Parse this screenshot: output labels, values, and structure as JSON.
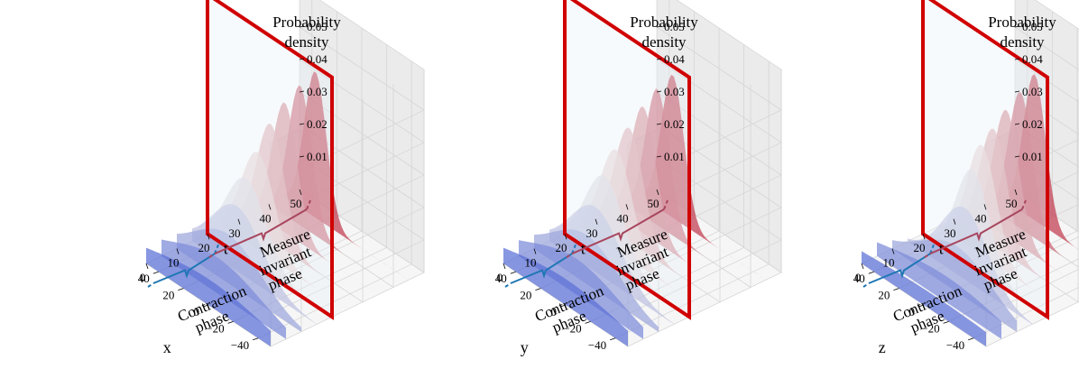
{
  "chart_data": [
    {
      "type": "area",
      "xlabel": "x",
      "ylabel": "t",
      "zlabel": "Probability density",
      "xlim": [
        -50,
        50
      ],
      "ylim": [
        0,
        50
      ],
      "zlim": [
        0,
        0.05
      ],
      "x_ticks": [
        "−40",
        "−20",
        "0",
        "20",
        "40"
      ],
      "t_ticks": [
        "0",
        "10",
        "20",
        "30",
        "40",
        "50"
      ],
      "z_ticks": [
        "0.01",
        "0.02",
        "0.03",
        "0.04",
        "0.05"
      ],
      "grid": true,
      "series": [
        {
          "t": 0,
          "mean": 0,
          "peak": 0.008
        },
        {
          "t": 5,
          "mean": 5,
          "peak": 0.011
        },
        {
          "t": 10,
          "mean": 9,
          "peak": 0.015
        },
        {
          "t": 15,
          "mean": 14,
          "peak": 0.02
        },
        {
          "t": 20,
          "mean": 19,
          "peak": 0.025
        },
        {
          "t": 25,
          "mean": 22,
          "peak": 0.03
        },
        {
          "t": 30,
          "mean": 24,
          "peak": 0.036
        },
        {
          "t": 35,
          "mean": 25,
          "peak": 0.04
        },
        {
          "t": 40,
          "mean": 25,
          "peak": 0.043
        },
        {
          "t": 45,
          "mean": 25,
          "peak": 0.045
        }
      ],
      "marker_plane_t": 20,
      "phases": [
        {
          "label_lines": [
            "Contraction",
            "phase"
          ],
          "t_range": [
            0,
            20
          ],
          "color": "#1f77b4"
        },
        {
          "label_lines": [
            "Measure",
            "invariant",
            "phase"
          ],
          "t_range": [
            20,
            50
          ],
          "color": "#a8465e"
        }
      ]
    },
    {
      "type": "area",
      "xlabel": "y",
      "ylabel": "t",
      "zlabel": "Probability density",
      "xlim": [
        -50,
        50
      ],
      "ylim": [
        0,
        50
      ],
      "zlim": [
        0,
        0.05
      ],
      "x_ticks": [
        "−40",
        "−20",
        "0",
        "20",
        "40"
      ],
      "t_ticks": [
        "0",
        "10",
        "20",
        "30",
        "40",
        "50"
      ],
      "z_ticks": [
        "0.01",
        "0.02",
        "0.03",
        "0.04",
        "0.05"
      ],
      "grid": true,
      "series": [
        {
          "t": 0,
          "mean": 0,
          "peak": 0.008
        },
        {
          "t": 5,
          "mean": 4,
          "peak": 0.011
        },
        {
          "t": 10,
          "mean": 8,
          "peak": 0.015
        },
        {
          "t": 15,
          "mean": 13,
          "peak": 0.02
        },
        {
          "t": 20,
          "mean": 18,
          "peak": 0.026
        },
        {
          "t": 25,
          "mean": 21,
          "peak": 0.031
        },
        {
          "t": 30,
          "mean": 23,
          "peak": 0.035
        },
        {
          "t": 35,
          "mean": 24,
          "peak": 0.039
        },
        {
          "t": 40,
          "mean": 25,
          "peak": 0.042
        },
        {
          "t": 45,
          "mean": 25,
          "peak": 0.044
        }
      ],
      "marker_plane_t": 20,
      "phases": [
        {
          "label_lines": [
            "Contraction",
            "phase"
          ],
          "t_range": [
            0,
            20
          ],
          "color": "#1f77b4"
        },
        {
          "label_lines": [
            "Measure",
            "invariant",
            "phase"
          ],
          "t_range": [
            20,
            50
          ],
          "color": "#a8465e"
        }
      ]
    },
    {
      "type": "area",
      "xlabel": "z",
      "ylabel": "t",
      "zlabel": "Probability density",
      "xlim": [
        -50,
        50
      ],
      "ylim": [
        0,
        50
      ],
      "zlim": [
        0,
        0.05
      ],
      "x_ticks": [
        "−40",
        "−20",
        "0",
        "20",
        "40"
      ],
      "t_ticks": [
        "0",
        "10",
        "20",
        "30",
        "40",
        "50"
      ],
      "z_ticks": [
        "0.01",
        "0.02",
        "0.03",
        "0.04",
        "0.05"
      ],
      "grid": true,
      "series": [
        {
          "t": 0,
          "mean": -10,
          "peak": 0.005
        },
        {
          "t": 5,
          "mean": -6,
          "peak": 0.008
        },
        {
          "t": 10,
          "mean": -2,
          "peak": 0.014
        },
        {
          "t": 15,
          "mean": 4,
          "peak": 0.022
        },
        {
          "t": 20,
          "mean": 10,
          "peak": 0.03
        },
        {
          "t": 25,
          "mean": 15,
          "peak": 0.034
        },
        {
          "t": 30,
          "mean": 18,
          "peak": 0.036
        },
        {
          "t": 35,
          "mean": 20,
          "peak": 0.039
        },
        {
          "t": 40,
          "mean": 21,
          "peak": 0.042
        },
        {
          "t": 45,
          "mean": 22,
          "peak": 0.045
        }
      ],
      "marker_plane_t": 20,
      "phases": [
        {
          "label_lines": [
            "Contraction",
            "phase"
          ],
          "t_range": [
            0,
            20
          ],
          "color": "#1f77b4"
        },
        {
          "label_lines": [
            "Measure",
            "invariant",
            "phase"
          ],
          "t_range": [
            20,
            50
          ],
          "color": "#a8465e"
        }
      ]
    }
  ],
  "colors": {
    "start": "#5a6fd6",
    "mid": "#eeeae6",
    "end": "#c03a4e",
    "pane": "#f2f2f2",
    "grid": "#d6d6d6",
    "plane": "#d00000"
  }
}
